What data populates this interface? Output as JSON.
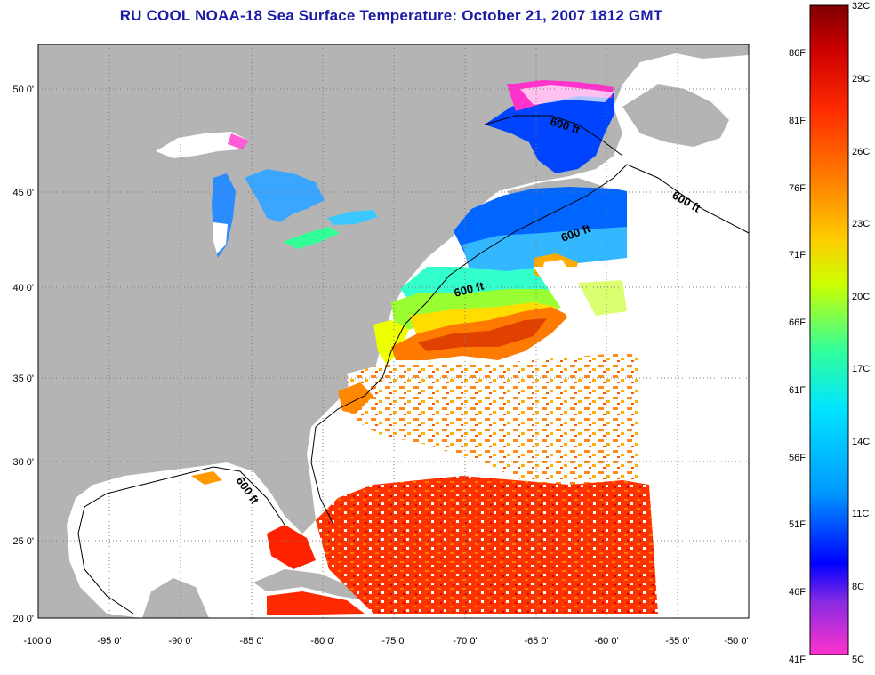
{
  "title": "RU COOL  NOAA-18  Sea Surface Temperature:  October 21, 2007 1812 GMT",
  "map": {
    "lon_range": [
      -100,
      -50
    ],
    "lat_range": [
      20,
      52.5
    ],
    "lon_ticks": [
      "-100 0'",
      "-95 0'",
      "-90 0'",
      "-85 0'",
      "-80 0'",
      "-75 0'",
      "-70 0'",
      "-65 0'",
      "-60 0'",
      "-55 0'",
      "-50 0'"
    ],
    "lat_ticks": [
      "50 0'",
      "45 0'",
      "40 0'",
      "35 0'",
      "30 0'",
      "25 0'",
      "20 0'"
    ],
    "land_color": "#b4b4b4",
    "ocean_nodata_color": "#ffffff",
    "grid": "dotted",
    "contour_label": "600 ft"
  },
  "colorbar": {
    "orientation": "vertical",
    "placement": "right",
    "celsius_labels": [
      "32C",
      "29C",
      "26C",
      "23C",
      "20C",
      "17C",
      "14C",
      "11C",
      "8C",
      "5C"
    ],
    "fahrenheit_labels": [
      "86F",
      "81F",
      "76F",
      "71F",
      "66F",
      "61F",
      "56F",
      "51F",
      "46F",
      "41F"
    ],
    "colors": [
      "#ff33cc",
      "#8a2be2",
      "#0000ff",
      "#0099ff",
      "#00e5ff",
      "#33ff99",
      "#ccff00",
      "#ffcc00",
      "#ff8800",
      "#ff2a00",
      "#cc0000",
      "#800000"
    ]
  }
}
